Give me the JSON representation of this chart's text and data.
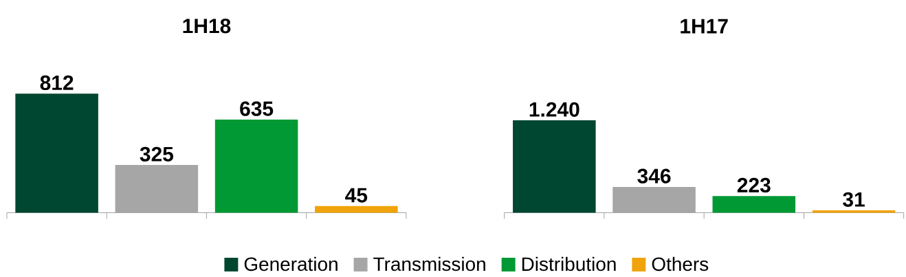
{
  "chart_data": [
    {
      "type": "bar",
      "title": "1H18",
      "categories": [
        null,
        null,
        null,
        null
      ],
      "tick_labels": false,
      "series": [
        {
          "colors": [
            "#004731",
            "#a6a6a6",
            "#009933",
            "#f0a30a"
          ],
          "values": [
            812,
            325,
            635,
            45
          ],
          "value_labels": [
            "812",
            "325",
            "635",
            "45"
          ]
        }
      ]
    },
    {
      "type": "bar",
      "title": "1H17",
      "categories": [
        null,
        null,
        null,
        null
      ],
      "tick_labels": false,
      "series": [
        {
          "colors": [
            "#004731",
            "#a6a6a6",
            "#009933",
            "#f0a30a"
          ],
          "values": [
            1240,
            346,
            223,
            31
          ],
          "value_labels": [
            "1.240",
            "346",
            "223",
            "31"
          ]
        }
      ]
    },
    {
      "type": "other",
      "categories": [
        "Generation",
        "Transmission",
        "Distribution",
        "Others"
      ],
      "colors": [
        "#004731",
        "#a6a6a6",
        "#009933",
        "#f0a30a"
      ]
    }
  ]
}
